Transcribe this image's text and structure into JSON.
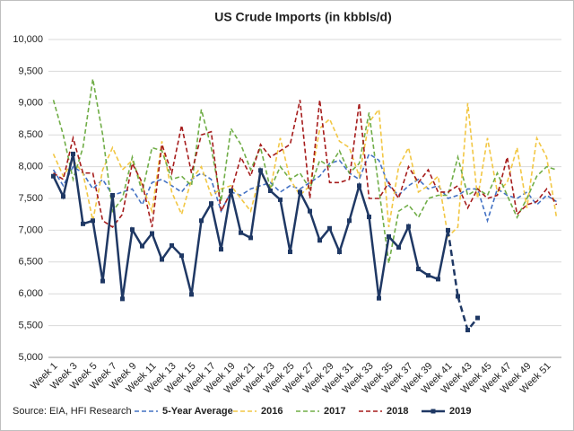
{
  "chart_data": {
    "type": "line",
    "title": "US Crude Imports (in kbbls/d)",
    "source": "Source: EIA, HFI Research",
    "categories": [
      "Week 1",
      null,
      "Week 3",
      null,
      "Week 5",
      null,
      "Week 7",
      null,
      "Week 9",
      null,
      "Week 11",
      null,
      "Week 13",
      null,
      "Week 15",
      null,
      "Week 17",
      null,
      "Week 19",
      null,
      "Week 21",
      null,
      "Week 23",
      null,
      "Week 25",
      null,
      "Week 27",
      null,
      "Week 29",
      null,
      "Week 31",
      null,
      "Week 33",
      null,
      "Week 35",
      null,
      "Week 37",
      null,
      "Week 39",
      null,
      "Week 41",
      null,
      "Week 43",
      null,
      "Week 45",
      null,
      "Week 47",
      null,
      "Week 49",
      null,
      "Week 51",
      null
    ],
    "ylim": [
      5000,
      10000
    ],
    "yticks": [
      {
        "value": 5000,
        "label": "5,000"
      },
      {
        "value": 5500,
        "label": "5,500"
      },
      {
        "value": 6000,
        "label": "6,000"
      },
      {
        "value": 6500,
        "label": "6,500"
      },
      {
        "value": 7000,
        "label": "7,000"
      },
      {
        "value": 7500,
        "label": "7,500"
      },
      {
        "value": 8000,
        "label": "8,000"
      },
      {
        "value": 8500,
        "label": "8,500"
      },
      {
        "value": 9000,
        "label": "9,000"
      },
      {
        "value": 9500,
        "label": "9,500"
      },
      {
        "value": 10000,
        "label": "10,000"
      }
    ],
    "grid": true,
    "legend": "bottom",
    "series": [
      {
        "name": "5-Year Average",
        "color": "#4472c4",
        "dashed": true,
        "values": [
          7950,
          7700,
          8000,
          7900,
          7650,
          7800,
          7550,
          7600,
          7650,
          7400,
          7750,
          7800,
          7700,
          7600,
          7800,
          7900,
          7800,
          7300,
          7600,
          7550,
          7650,
          7700,
          7750,
          7600,
          7700,
          7650,
          7750,
          7850,
          8050,
          8100,
          7900,
          7800,
          8200,
          8100,
          7700,
          7550,
          7700,
          7800,
          7650,
          7700,
          7500,
          7550,
          7650,
          7650,
          7150,
          7650,
          7550,
          7500,
          7600,
          7400,
          7550,
          7450
        ]
      },
      {
        "name": "2016",
        "color": "#f2c744",
        "dashed": true,
        "values": [
          8200,
          7850,
          8100,
          7900,
          7150,
          7950,
          8300,
          7950,
          8100,
          7700,
          7300,
          8400,
          7600,
          7250,
          7800,
          8000,
          7550,
          7650,
          7700,
          7500,
          7300,
          7900,
          7650,
          8450,
          7800,
          7550,
          7700,
          8600,
          8750,
          8400,
          8300,
          7850,
          8700,
          8900,
          7050,
          8000,
          8300,
          7600,
          7700,
          7850,
          6900,
          7050,
          9000,
          7500,
          8450,
          7600,
          7750,
          8300,
          7350,
          8450,
          8150,
          7200
        ]
      },
      {
        "name": "2017",
        "color": "#70ad47",
        "dashed": true,
        "values": [
          9050,
          8500,
          7800,
          8300,
          9380,
          8500,
          7300,
          7500,
          8150,
          7600,
          8300,
          8250,
          7800,
          7850,
          7700,
          8900,
          8300,
          7450,
          8600,
          8350,
          7950,
          8300,
          7650,
          8000,
          7800,
          7900,
          7650,
          8100,
          8000,
          8250,
          7900,
          8050,
          8850,
          7650,
          6480,
          7300,
          7400,
          7200,
          7500,
          7550,
          7550,
          8150,
          7550,
          7650,
          7550,
          7900,
          7550,
          7200,
          7500,
          7850,
          8000,
          7950
        ]
      },
      {
        "name": "2018",
        "color": "#a61c1c",
        "dashed": true,
        "values": [
          7900,
          7800,
          8450,
          7900,
          7900,
          7150,
          7050,
          7250,
          8050,
          7750,
          7050,
          8350,
          7900,
          8650,
          7900,
          8500,
          8550,
          7300,
          7600,
          8150,
          7850,
          8350,
          8150,
          8250,
          8350,
          9050,
          7500,
          9050,
          7750,
          7750,
          7800,
          9000,
          7500,
          7500,
          7750,
          7500,
          8000,
          7750,
          7950,
          7600,
          7600,
          7700,
          7350,
          7650,
          7500,
          7550,
          8150,
          7250,
          7400,
          7450,
          7650,
          7400
        ]
      },
      {
        "name": "2019",
        "color": "#1f3864",
        "dashed": false,
        "markers": true,
        "dash_start": 40,
        "values": [
          7850,
          7530,
          8200,
          7100,
          7150,
          6200,
          7550,
          5920,
          7010,
          6750,
          6950,
          6540,
          6760,
          6600,
          5990,
          7150,
          7420,
          6700,
          7620,
          6960,
          6880,
          7940,
          7620,
          7480,
          6660,
          7600,
          7300,
          6840,
          7030,
          6660,
          7150,
          7700,
          7210,
          5930,
          6900,
          6730,
          7060,
          6390,
          6290,
          6230,
          7000,
          5960,
          5430,
          5620,
          null,
          null,
          null,
          null,
          null,
          null,
          null,
          null
        ]
      }
    ]
  }
}
